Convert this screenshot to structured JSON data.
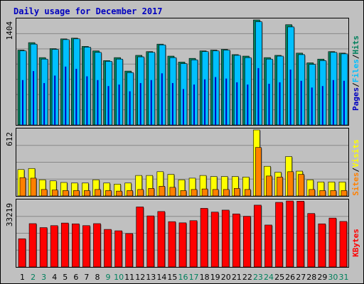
{
  "title": "Daily usage for December 2017",
  "colors": {
    "background": "#c0c0c0",
    "title": "#0000c0",
    "hits": "#00805c",
    "files": "#00c0ff",
    "pages": "#0000c0",
    "visits": "#ffff00",
    "sites": "#ff8000",
    "kbytes": "#ff0000",
    "weekend_label": "#00805c",
    "weekday_label": "#000000"
  },
  "chart_data": [
    {
      "type": "bar",
      "name": "requests-panel",
      "categories": [
        "1",
        "2",
        "3",
        "4",
        "5",
        "6",
        "7",
        "8",
        "9",
        "10",
        "11",
        "12",
        "13",
        "14",
        "15",
        "16",
        "17",
        "18",
        "19",
        "20",
        "21",
        "22",
        "23",
        "24",
        "25",
        "26",
        "27",
        "28",
        "29",
        "30",
        "31"
      ],
      "weekend_days": [
        "2",
        "3",
        "9",
        "10",
        "16",
        "17",
        "23",
        "24",
        "30",
        "31"
      ],
      "max_label": "1404",
      "ylim": [
        0,
        1404
      ],
      "legend": [
        "Pages",
        "Files",
        "Hits"
      ],
      "legend_separator": "/",
      "series": [
        {
          "name": "Hits",
          "values": [
            1000,
            1100,
            900,
            1020,
            1150,
            1160,
            1050,
            990,
            860,
            900,
            720,
            930,
            980,
            1080,
            920,
            840,
            890,
            990,
            1000,
            1010,
            940,
            920,
            1404,
            900,
            930,
            1340,
            960,
            830,
            880,
            980,
            960
          ]
        },
        {
          "name": "Files",
          "values": [
            990,
            1080,
            880,
            1010,
            1140,
            1150,
            1040,
            970,
            850,
            880,
            700,
            910,
            970,
            1070,
            900,
            820,
            870,
            980,
            990,
            1000,
            930,
            900,
            1380,
            880,
            920,
            1310,
            940,
            810,
            860,
            970,
            950
          ]
        },
        {
          "name": "Pages",
          "values": [
            600,
            720,
            560,
            660,
            780,
            750,
            650,
            600,
            520,
            540,
            450,
            560,
            600,
            690,
            560,
            480,
            540,
            610,
            640,
            620,
            570,
            540,
            760,
            550,
            570,
            740,
            590,
            500,
            520,
            600,
            590
          ]
        }
      ]
    },
    {
      "type": "bar",
      "name": "visits-panel",
      "categories": [
        "1",
        "2",
        "3",
        "4",
        "5",
        "6",
        "7",
        "8",
        "9",
        "10",
        "11",
        "12",
        "13",
        "14",
        "15",
        "16",
        "17",
        "18",
        "19",
        "20",
        "21",
        "22",
        "23",
        "24",
        "25",
        "26",
        "27",
        "28",
        "29",
        "30",
        "31"
      ],
      "max_label": "612",
      "ylim": [
        0,
        612
      ],
      "legend": [
        "Sites",
        "Visits"
      ],
      "legend_separator": "/",
      "series": [
        {
          "name": "Visits",
          "values": [
            245,
            255,
            150,
            140,
            125,
            120,
            120,
            150,
            120,
            110,
            120,
            190,
            190,
            225,
            200,
            150,
            165,
            190,
            180,
            180,
            180,
            175,
            612,
            275,
            220,
            365,
            230,
            150,
            130,
            130,
            130
          ]
        },
        {
          "name": "Sites",
          "values": [
            170,
            165,
            60,
            55,
            50,
            50,
            50,
            60,
            50,
            45,
            50,
            60,
            70,
            90,
            80,
            50,
            60,
            65,
            60,
            60,
            70,
            60,
            450,
            185,
            175,
            225,
            200,
            60,
            50,
            50,
            50
          ]
        }
      ]
    },
    {
      "type": "bar",
      "name": "kbytes-panel",
      "categories": [
        "1",
        "2",
        "3",
        "4",
        "5",
        "6",
        "7",
        "8",
        "9",
        "10",
        "11",
        "12",
        "13",
        "14",
        "15",
        "16",
        "17",
        "18",
        "19",
        "20",
        "21",
        "22",
        "23",
        "24",
        "25",
        "26",
        "27",
        "28",
        "29",
        "30",
        "31"
      ],
      "max_label": "33219",
      "ylim": [
        0,
        33219
      ],
      "legend": [
        "KBytes"
      ],
      "series": [
        {
          "name": "KBytes",
          "values": [
            14200,
            21800,
            19800,
            20800,
            22100,
            21700,
            20800,
            21800,
            18900,
            18200,
            16800,
            30200,
            25700,
            27900,
            22800,
            22200,
            23300,
            29500,
            27600,
            28600,
            26700,
            25500,
            31100,
            21100,
            32500,
            33219,
            33100,
            26900,
            21700,
            24600,
            22900
          ]
        }
      ]
    }
  ]
}
